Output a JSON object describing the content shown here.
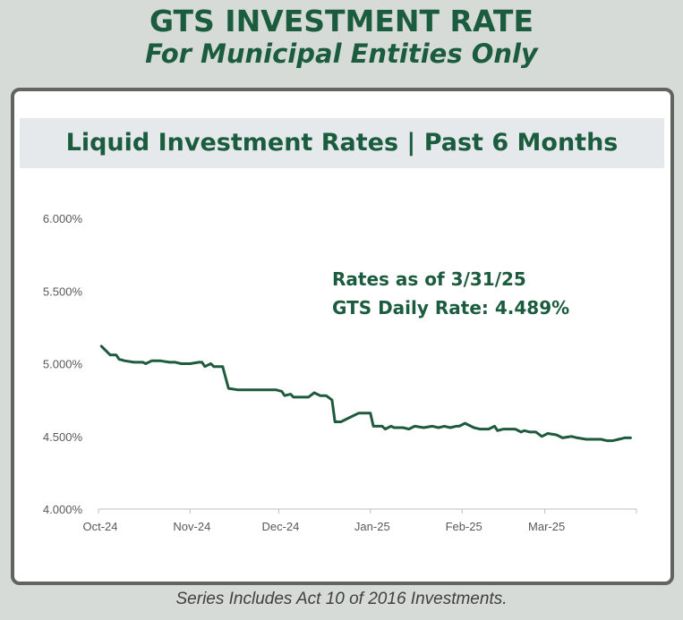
{
  "header": {
    "title": "GTS INVESTMENT RATE",
    "subtitle": "For Municipal Entities Only"
  },
  "footer": {
    "note": "Series Includes Act 10 of 2016 Investments."
  },
  "colors": {
    "brand_green": "#1b5c3f",
    "line_green": "#1e5a3e",
    "axis": "#bfbfbf",
    "tick_text": "#595959"
  },
  "chart_data": {
    "type": "line",
    "title": "Liquid Investment Rates | Past 6 Months",
    "annotation": [
      "Rates as of 3/31/25",
      "GTS Daily Rate: 4.489%"
    ],
    "xlabel": "",
    "ylabel": "",
    "ylim": [
      4.0,
      6.0
    ],
    "yticks": [
      4.0,
      4.5,
      5.0,
      5.5,
      6.0
    ],
    "ytick_labels": [
      "4.000%",
      "4.500%",
      "5.000%",
      "5.500%",
      "6.000%"
    ],
    "xlim": [
      0,
      182
    ],
    "xticks": [
      0,
      31,
      61,
      92,
      123,
      151,
      182
    ],
    "xtick_labels": [
      "Oct-24",
      "Nov-24",
      "Dec-24",
      "Jan-25",
      "Feb-25",
      "Mar-25",
      ""
    ],
    "grid": false,
    "series": [
      {
        "name": "GTS Daily Rate",
        "x": [
          1,
          4,
          6,
          7,
          9,
          12,
          15,
          16,
          18,
          21,
          24,
          26,
          28,
          30,
          31,
          34,
          35,
          36,
          38,
          39,
          41,
          42,
          44,
          47,
          51,
          53,
          56,
          60,
          62,
          63,
          65,
          66,
          68,
          70,
          71,
          73,
          74,
          75,
          76,
          77,
          79,
          80,
          81,
          82,
          83,
          85,
          88,
          89,
          91,
          92,
          93,
          95,
          96,
          97,
          99,
          100,
          103,
          105,
          107,
          110,
          113,
          115,
          117,
          119,
          121,
          122,
          124,
          127,
          129,
          130,
          132,
          134,
          135,
          137,
          140,
          141,
          143,
          144,
          146,
          148,
          150,
          152,
          155,
          157,
          160,
          162,
          165,
          168,
          170,
          172,
          174,
          176,
          178,
          180
        ],
        "values": [
          5.12,
          5.06,
          5.06,
          5.03,
          5.02,
          5.01,
          5.01,
          5.0,
          5.02,
          5.02,
          5.01,
          5.01,
          5.0,
          5.0,
          5.0,
          5.01,
          5.01,
          4.98,
          5.0,
          4.98,
          4.98,
          4.98,
          4.83,
          4.82,
          4.82,
          4.82,
          4.82,
          4.82,
          4.81,
          4.78,
          4.79,
          4.77,
          4.77,
          4.77,
          4.77,
          4.8,
          4.79,
          4.78,
          4.78,
          4.78,
          4.75,
          4.6,
          4.6,
          4.6,
          4.61,
          4.63,
          4.66,
          4.66,
          4.66,
          4.66,
          4.57,
          4.57,
          4.57,
          4.55,
          4.57,
          4.56,
          4.56,
          4.55,
          4.57,
          4.56,
          4.57,
          4.56,
          4.57,
          4.56,
          4.57,
          4.57,
          4.59,
          4.56,
          4.55,
          4.55,
          4.55,
          4.57,
          4.54,
          4.55,
          4.55,
          4.55,
          4.53,
          4.54,
          4.53,
          4.53,
          4.5,
          4.52,
          4.51,
          4.49,
          4.5,
          4.49,
          4.48,
          4.48,
          4.48,
          4.47,
          4.47,
          4.48,
          4.49,
          4.49
        ]
      }
    ]
  }
}
